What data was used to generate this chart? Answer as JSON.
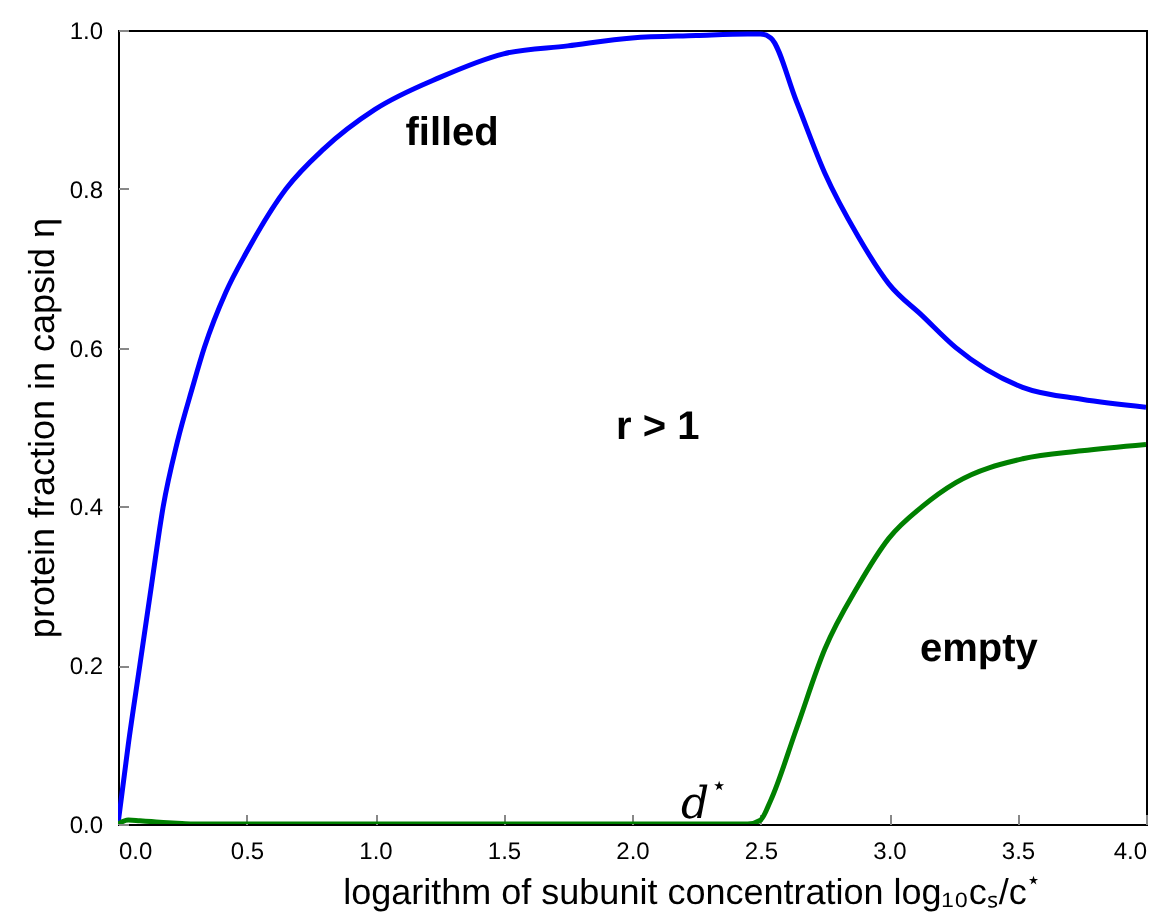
{
  "chart_data": {
    "type": "line",
    "xlabel": "logarithm of subunit concentration log₁₀cₛ/c$^{⋆}$",
    "ylabel": "protein fraction in capsid η",
    "x": [
      0,
      0.04,
      0.085,
      0.13,
      0.176,
      0.23,
      0.29,
      0.336,
      0.42,
      0.5,
      0.654,
      0.8,
      1.0,
      1.25,
      1.5,
      1.75,
      2.0,
      2.25,
      2.45,
      2.5,
      2.54,
      2.64,
      2.75,
      2.88,
      3.0,
      3.13,
      3.26,
      3.52,
      3.75,
      4.0
    ],
    "series": [
      {
        "color": "#0000ff",
        "values": [
          0,
          0.1,
          0.2,
          0.3,
          0.4,
          0.48,
          0.55,
          0.6,
          0.67,
          0.72,
          0.8,
          0.85,
          0.9,
          0.94,
          0.97,
          0.98,
          0.99,
          0.993,
          0.995,
          0.995,
          0.99,
          0.91,
          0.82,
          0.74,
          0.68,
          0.64,
          0.6,
          0.55,
          0.535,
          0.525
        ]
      },
      {
        "color": "#008000",
        "values": [
          0,
          0.005,
          0.004,
          0.003,
          0.002,
          0.001,
          0,
          0,
          0,
          0,
          0,
          0,
          0,
          0,
          0,
          0,
          0,
          0,
          0,
          0.005,
          0.03,
          0.12,
          0.22,
          0.3,
          0.36,
          0.4,
          0.43,
          0.46,
          0.47,
          0.478
        ]
      }
    ],
    "xlim": [
      0,
      4
    ],
    "ylim": [
      0,
      1
    ],
    "xticks": [
      {
        "value": 0,
        "label": "0.0"
      },
      0.5,
      {
        "value": 1,
        "label": "1.0"
      },
      1.5,
      {
        "value": 2,
        "label": "2.0"
      },
      2.5,
      {
        "value": 3,
        "label": "3.0"
      },
      3.5,
      {
        "value": 4,
        "label": "4.0"
      }
    ],
    "yticks": [
      {
        "value": 0,
        "label": "0.0"
      },
      0.2,
      0.4,
      0.6,
      0.8,
      {
        "value": 1,
        "label": "1.0"
      }
    ],
    "grid": false,
    "marker": "none",
    "line_style": "solid",
    "annotations": [
      "filled",
      "r > 1",
      "empty",
      "d$^{⋆}$"
    ]
  }
}
